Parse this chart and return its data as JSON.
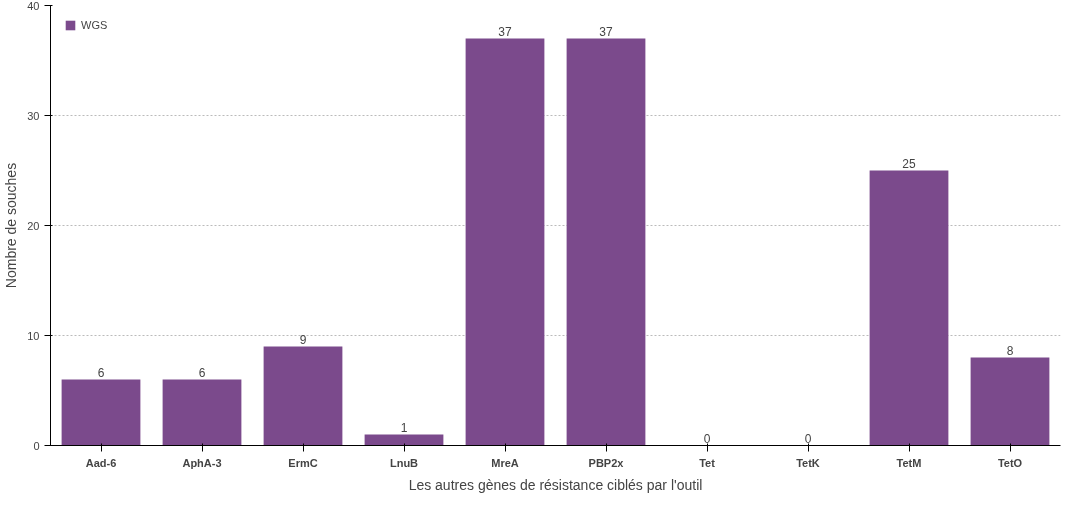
{
  "chart_data": {
    "type": "bar",
    "xlabel": "Les autres gènes de résistance ciblés par l'outil",
    "ylabel": "Nombre de souches",
    "categories": [
      "Aad-6",
      "AphA-3",
      "ErmC",
      "LnuB",
      "MreA",
      "PBP2x",
      "Tet",
      "TetK",
      "TetM",
      "TetO"
    ],
    "series": [
      {
        "name": "WGS",
        "color": "#7b4a8c",
        "values": [
          6,
          6,
          9,
          1,
          37,
          37,
          0,
          0,
          25,
          8
        ]
      }
    ],
    "ylim": [
      0,
      40
    ],
    "yticks": [
      0,
      10,
      20,
      30,
      40
    ],
    "grid": "y",
    "legend": "top left",
    "data_labels": true
  }
}
